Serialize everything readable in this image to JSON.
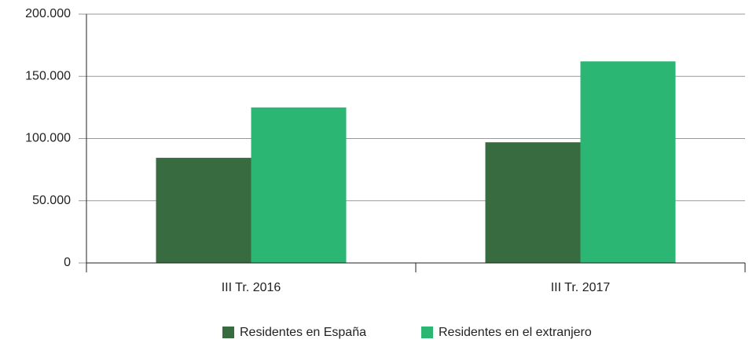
{
  "chart_data": {
    "type": "bar",
    "categories": [
      "III Tr. 2016",
      "III Tr. 2017"
    ],
    "series": [
      {
        "name": "Residentes en España",
        "color": "#386b3f",
        "values": [
          84500,
          97000
        ]
      },
      {
        "name": "Residentes en el extranjero",
        "color": "#2bb673",
        "values": [
          125000,
          162000
        ]
      }
    ],
    "ylim": [
      0,
      200000
    ],
    "yticks": [
      0,
      {
        "value": 50000,
        "label": "50.000"
      },
      {
        "value": 100000,
        "label": "100.000"
      },
      {
        "value": 150000,
        "label": "150.000"
      },
      {
        "value": 200000,
        "label": "200.000"
      }
    ],
    "grid": true,
    "legend": "bottom"
  }
}
